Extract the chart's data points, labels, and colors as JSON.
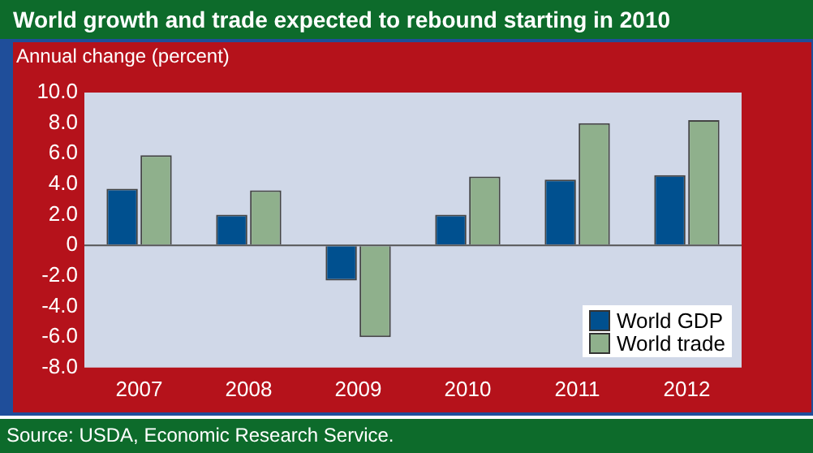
{
  "chart_data": {
    "type": "bar",
    "title": "World growth and trade expected to rebound starting in 2010",
    "ylabel": "Annual change (percent)",
    "categories": [
      "2007",
      "2008",
      "2009",
      "2010",
      "2011",
      "2012"
    ],
    "series": [
      {
        "name": "World GDP",
        "color": "#00508f",
        "values": [
          3.7,
          2.0,
          -2.3,
          2.0,
          4.3,
          4.6
        ]
      },
      {
        "name": "World trade",
        "color": "#8fb08c",
        "values": [
          5.9,
          3.6,
          -6.0,
          4.5,
          8.0,
          8.2
        ]
      }
    ],
    "ylim": [
      -8,
      10
    ],
    "yticks": [
      {
        "value": -8,
        "label": "-8.0"
      },
      {
        "value": -6,
        "label": "-6.0"
      },
      {
        "value": -4,
        "label": "-4.0"
      },
      {
        "value": -2,
        "label": "-2.0"
      },
      0,
      {
        "value": 2,
        "label": "2.0"
      },
      {
        "value": 4,
        "label": "4.0"
      },
      {
        "value": 6,
        "label": "6.0"
      },
      {
        "value": 8,
        "label": "8.0"
      },
      {
        "value": 10,
        "label": "10.0"
      }
    ],
    "grid": false,
    "legend": "bottom right",
    "ref_lines": [
      {
        "axis": "y",
        "value": 0,
        "color": "#555555"
      }
    ],
    "annotations": [
      "Source: USDA, Economic Research Service."
    ]
  }
}
